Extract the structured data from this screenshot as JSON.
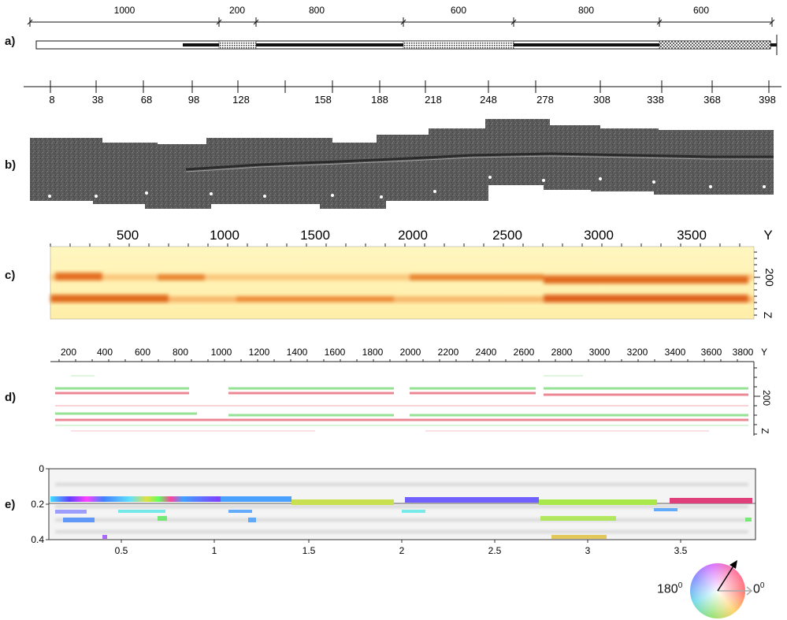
{
  "panels": {
    "a": {
      "label": "a)",
      "segment_lengths": [
        "1000",
        "200",
        "800",
        "600",
        "800",
        "600"
      ],
      "station_ticks": [
        "8",
        "38",
        "68",
        "98",
        "128",
        "158",
        "188",
        "218",
        "248",
        "278",
        "308",
        "338",
        "368",
        "398"
      ]
    },
    "b": {
      "label": "b)"
    },
    "c": {
      "label": "c)",
      "y_ticks": [
        "500",
        "1000",
        "1500",
        "2000",
        "2500",
        "3000",
        "3500"
      ],
      "y_axis_label": "Y",
      "z_tick": "200",
      "z_axis_label": "Z"
    },
    "d": {
      "label": "d)",
      "y_ticks": [
        "200",
        "400",
        "600",
        "800",
        "1000",
        "1200",
        "1400",
        "1600",
        "1800",
        "2000",
        "2200",
        "2400",
        "2600",
        "2800",
        "3000",
        "3200",
        "3400",
        "3600",
        "3800"
      ],
      "y_axis_label": "Y",
      "z_tick": "200",
      "z_axis_label": "Z"
    },
    "e": {
      "label": "e)",
      "x_ticks": [
        "0.5",
        "1",
        "1.5",
        "2",
        "2.5",
        "3",
        "3.5"
      ],
      "y_ticks": [
        "0",
        "0.2",
        "0.4"
      ]
    }
  },
  "legend": {
    "left_label": "180",
    "left_sup": "0",
    "right_label": "0",
    "right_sup": "0",
    "colors": {
      "orange_band": "#e8742a",
      "red_trace": "#e86a7a",
      "green_trace": "#7adc7a",
      "accent": "#000000"
    }
  }
}
